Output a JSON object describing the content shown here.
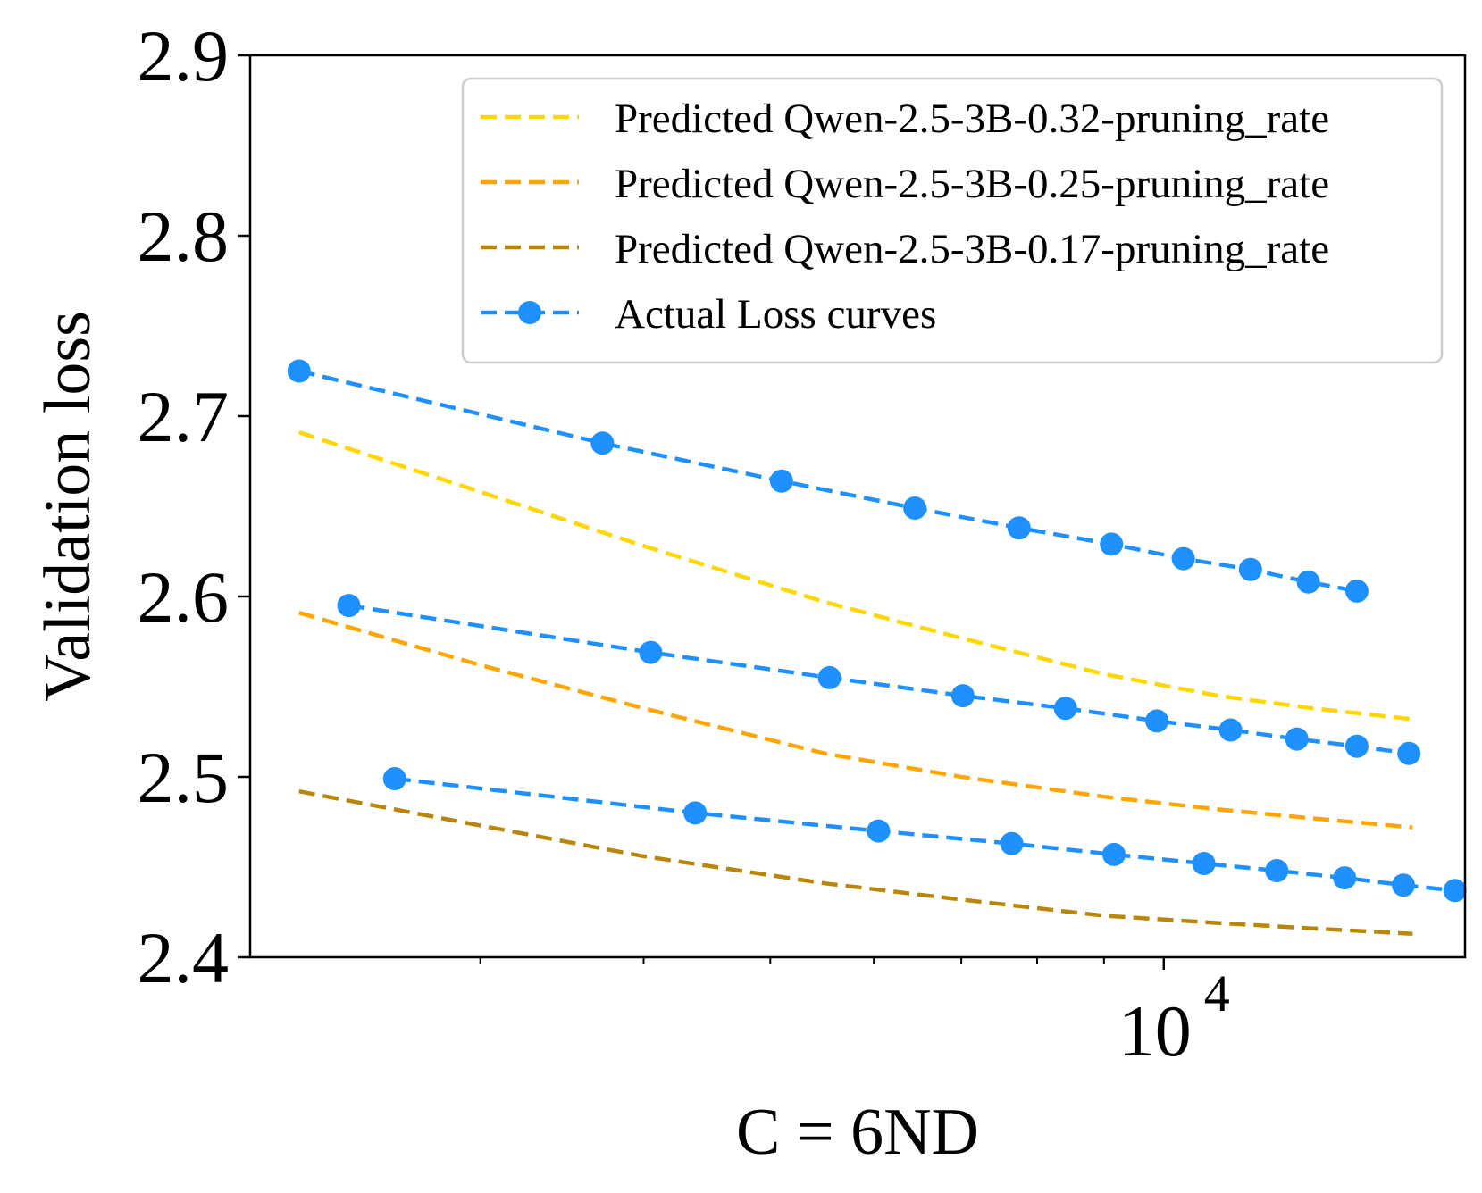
{
  "chart_data": {
    "type": "line",
    "title": "",
    "xlabel": "C = 6ND",
    "ylabel": "Validation loss",
    "xscale": "log",
    "xlim": [
      2000,
      17000
    ],
    "ylim": [
      2.4,
      2.9
    ],
    "yticks": [
      "2.4",
      "2.5",
      "2.6",
      "2.7",
      "2.8",
      "2.9"
    ],
    "xtick_major": {
      "value": 10000,
      "base": "10",
      "exponent": "4"
    },
    "legend_position": "top-right",
    "colors": {
      "pred_032": "#FFD700",
      "pred_025": "#FFA500",
      "pred_017": "#B8860B",
      "actual": "#1E90FF"
    },
    "predicted_x": [
      2180,
      3000,
      4000,
      5500,
      7000,
      9000,
      11000,
      13000,
      15500
    ],
    "series": [
      {
        "name": "Predicted Qwen-2.5-3B-0.32-pruning_rate",
        "kind": "predicted",
        "colorKey": "pred_032",
        "values": [
          2.691,
          2.658,
          2.628,
          2.597,
          2.577,
          2.557,
          2.545,
          2.538,
          2.532
        ]
      },
      {
        "name": "Predicted Qwen-2.5-3B-0.25-pruning_rate",
        "kind": "predicted",
        "colorKey": "pred_025",
        "values": [
          2.591,
          2.562,
          2.538,
          2.513,
          2.5,
          2.489,
          2.482,
          2.477,
          2.472
        ]
      },
      {
        "name": "Predicted Qwen-2.5-3B-0.17-pruning_rate",
        "kind": "predicted",
        "colorKey": "pred_017",
        "values": [
          2.492,
          2.473,
          2.456,
          2.441,
          2.432,
          2.423,
          2.419,
          2.416,
          2.413
        ]
      },
      {
        "name": "Actual Loss curves",
        "kind": "actual",
        "colorKey": "actual",
        "groups": [
          {
            "x": [
              2180,
              3720,
              5100,
              6450,
              7750,
              9120,
              10350,
              11650,
              12900,
              14050
            ],
            "values": [
              2.725,
              2.685,
              2.664,
              2.649,
              2.638,
              2.629,
              2.621,
              2.615,
              2.608,
              2.603
            ]
          },
          {
            "x": [
              2380,
              4050,
              5550,
              7020,
              8410,
              9880,
              11250,
              12640,
              14050,
              15400
            ],
            "values": [
              2.595,
              2.569,
              2.555,
              2.545,
              2.538,
              2.531,
              2.526,
              2.521,
              2.517,
              2.513
            ]
          },
          {
            "x": [
              2580,
              4380,
              6050,
              7650,
              9160,
              10730,
              12200,
              13750,
              15250,
              16700
            ],
            "values": [
              2.499,
              2.48,
              2.47,
              2.463,
              2.457,
              2.452,
              2.448,
              2.444,
              2.44,
              2.437
            ]
          }
        ]
      }
    ]
  }
}
